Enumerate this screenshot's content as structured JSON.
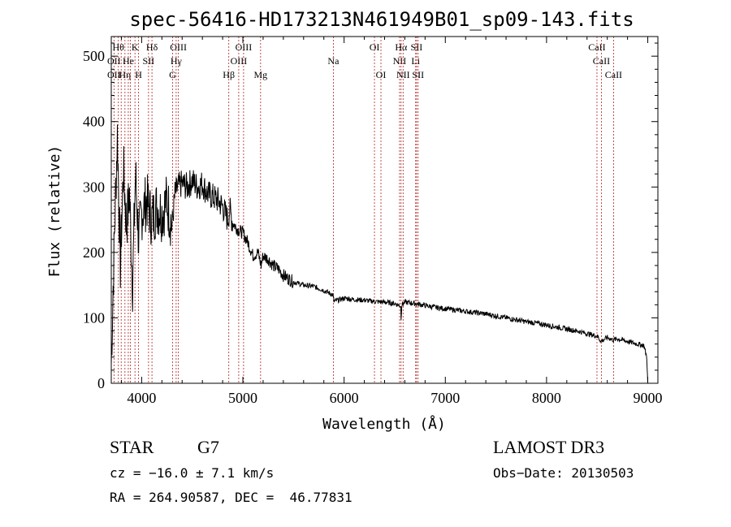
{
  "chart_data": {
    "type": "line",
    "title": "spec-56416-HD173213N461949B01_sp09-143.fits",
    "xlabel": "Wavelength (Å)",
    "ylabel": "Flux (relative)",
    "xlim": [
      3700,
      9100
    ],
    "ylim": [
      0,
      530
    ],
    "xticks": [
      4000,
      5000,
      6000,
      7000,
      8000,
      9000
    ],
    "yticks": [
      0,
      100,
      200,
      300,
      400,
      500
    ],
    "series": [
      {
        "name": "spectrum",
        "x": [
          3700,
          3730,
          3760,
          3790,
          3820,
          3850,
          3880,
          3910,
          3940,
          3970,
          4000,
          4050,
          4100,
          4150,
          4200,
          4250,
          4300,
          4330,
          4360,
          4400,
          4450,
          4500,
          4550,
          4600,
          4650,
          4700,
          4750,
          4800,
          4850,
          4870,
          4900,
          4950,
          5000,
          5050,
          5100,
          5150,
          5180,
          5200,
          5250,
          5300,
          5350,
          5400,
          5500,
          5600,
          5700,
          5800,
          5890,
          5900,
          6000,
          6100,
          6200,
          6300,
          6400,
          6500,
          6560,
          6563,
          6570,
          6600,
          6700,
          6800,
          6900,
          7000,
          7100,
          7200,
          7300,
          7400,
          7500,
          7600,
          7700,
          7800,
          7900,
          8000,
          8100,
          8200,
          8300,
          8400,
          8500,
          8540,
          8600,
          8660,
          8700,
          8800,
          8900,
          8960,
          8990,
          9000
        ],
        "values": [
          30,
          220,
          380,
          180,
          330,
          240,
          290,
          150,
          320,
          220,
          260,
          280,
          250,
          270,
          260,
          280,
          240,
          290,
          300,
          305,
          300,
          310,
          300,
          305,
          290,
          285,
          280,
          270,
          250,
          265,
          245,
          235,
          230,
          215,
          195,
          200,
          180,
          195,
          190,
          180,
          175,
          165,
          155,
          150,
          148,
          142,
          135,
          125,
          130,
          128,
          127,
          125,
          124,
          122,
          118,
          100,
          120,
          124,
          122,
          119,
          116,
          114,
          112,
          110,
          108,
          106,
          103,
          100,
          97,
          94,
          92,
          89,
          86,
          83,
          80,
          76,
          72,
          64,
          70,
          66,
          68,
          64,
          60,
          58,
          40,
          0
        ]
      }
    ],
    "lines": [
      {
        "wl": 3727,
        "top": "",
        "mid": "OII",
        "low": "OII"
      },
      {
        "wl": 3770,
        "top": "Hθ",
        "mid": "",
        "low": ""
      },
      {
        "wl": 3798,
        "top": "",
        "mid": "",
        "low": ""
      },
      {
        "wl": 3835,
        "top": "",
        "mid": "",
        "low": "Hη"
      },
      {
        "wl": 3868,
        "top": "",
        "mid": "He",
        "low": ""
      },
      {
        "wl": 3889,
        "top": "",
        "mid": "",
        "low": ""
      },
      {
        "wl": 3934,
        "top": "K",
        "mid": "",
        "low": ""
      },
      {
        "wl": 3969,
        "top": "",
        "mid": "",
        "low": "H"
      },
      {
        "wl": 4068,
        "top": "",
        "mid": "SII",
        "low": ""
      },
      {
        "wl": 4102,
        "top": "Hδ",
        "mid": "",
        "low": ""
      },
      {
        "wl": 4305,
        "top": "",
        "mid": "",
        "low": "G"
      },
      {
        "wl": 4341,
        "top": "",
        "mid": "Hγ",
        "low": ""
      },
      {
        "wl": 4363,
        "top": "OIII",
        "mid": "",
        "low": ""
      },
      {
        "wl": 4861,
        "top": "",
        "mid": "",
        "low": "Hβ"
      },
      {
        "wl": 4959,
        "top": "",
        "mid": "OIII",
        "low": ""
      },
      {
        "wl": 5007,
        "top": "OIII",
        "mid": "",
        "low": ""
      },
      {
        "wl": 5175,
        "top": "",
        "mid": "",
        "low": "Mg"
      },
      {
        "wl": 5894,
        "top": "",
        "mid": "Na",
        "low": ""
      },
      {
        "wl": 6300,
        "top": "OI",
        "mid": "",
        "low": ""
      },
      {
        "wl": 6364,
        "top": "",
        "mid": "",
        "low": "OI"
      },
      {
        "wl": 6548,
        "top": "",
        "mid": "NII",
        "low": ""
      },
      {
        "wl": 6563,
        "top": "Hα",
        "mid": "",
        "low": ""
      },
      {
        "wl": 6583,
        "top": "",
        "mid": "",
        "low": "NII"
      },
      {
        "wl": 6707,
        "top": "",
        "mid": "Li",
        "low": ""
      },
      {
        "wl": 6716,
        "top": "SII",
        "mid": "",
        "low": ""
      },
      {
        "wl": 6731,
        "top": "",
        "mid": "",
        "low": "SII"
      },
      {
        "wl": 8498,
        "top": "CaII",
        "mid": "",
        "low": ""
      },
      {
        "wl": 8542,
        "top": "",
        "mid": "CaII",
        "low": ""
      },
      {
        "wl": 8662,
        "top": "",
        "mid": "",
        "low": "CaII"
      }
    ]
  },
  "info": {
    "class_label": "STAR",
    "subclass": "G7",
    "survey": "LAMOST DR3",
    "cz": "cz = −16.0 ± 7.1 km/s",
    "obs_date": "Obs−Date: 20130503",
    "coords": "RA = 264.90587, DEC =  46.77831"
  },
  "colors": {
    "spectrum": "#000000",
    "line_marker": "#b22222",
    "axis": "#000000"
  }
}
